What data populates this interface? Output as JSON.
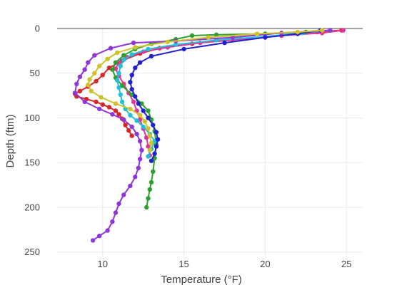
{
  "chart_data": {
    "type": "line",
    "title": "",
    "xlabel": "Temperature (°F)",
    "ylabel": "Depth (ftm)",
    "xlim": [
      7.2,
      26
    ],
    "ylim": [
      0,
      255
    ],
    "y_reversed": true,
    "x_ticks": [
      10,
      15,
      20,
      25
    ],
    "y_ticks": [
      0,
      50,
      100,
      150,
      200,
      250
    ],
    "grid": true,
    "legend": "none",
    "zero_line": true,
    "series": [
      {
        "color": "#d62728",
        "points": [
          [
            24.7,
            2
          ],
          [
            23.2,
            4
          ],
          [
            21.0,
            8
          ],
          [
            18.0,
            12
          ],
          [
            15.5,
            17
          ],
          [
            13.5,
            22
          ],
          [
            12.3,
            28
          ],
          [
            11.2,
            36
          ],
          [
            10.4,
            44
          ],
          [
            10.0,
            52
          ],
          [
            9.6,
            59
          ],
          [
            9.1,
            65
          ],
          [
            8.6,
            70
          ],
          [
            8.3,
            73
          ],
          [
            8.4,
            76
          ],
          [
            9.0,
            79
          ],
          [
            9.6,
            82
          ],
          [
            10.0,
            85
          ],
          [
            10.4,
            88
          ],
          [
            10.8,
            92
          ],
          [
            11.0,
            96
          ],
          [
            11.2,
            101
          ],
          [
            11.4,
            108
          ],
          [
            11.6,
            114
          ],
          [
            11.8,
            120
          ]
        ]
      },
      {
        "color": "#e0359a",
        "points": [
          [
            24.8,
            2
          ],
          [
            23.5,
            5
          ],
          [
            21.0,
            8
          ],
          [
            18.5,
            12
          ],
          [
            16.0,
            16
          ],
          [
            14.0,
            21
          ],
          [
            12.5,
            26
          ],
          [
            11.5,
            32
          ],
          [
            11.0,
            38
          ],
          [
            10.8,
            45
          ],
          [
            11.0,
            53
          ],
          [
            11.3,
            62
          ],
          [
            11.6,
            72
          ],
          [
            11.9,
            82
          ],
          [
            12.1,
            92
          ],
          [
            12.3,
            102
          ],
          [
            12.5,
            112
          ],
          [
            12.7,
            122
          ],
          [
            12.8,
            132
          ],
          [
            12.9,
            142
          ]
        ]
      },
      {
        "color": "#2ca02c",
        "points": [
          [
            24.0,
            2
          ],
          [
            22.5,
            4
          ],
          [
            20.0,
            6
          ],
          [
            17.0,
            7
          ],
          [
            15.5,
            8
          ],
          [
            14.5,
            12
          ],
          [
            13.0,
            17
          ],
          [
            12.0,
            23
          ],
          [
            11.3,
            30
          ],
          [
            10.8,
            38
          ],
          [
            10.6,
            46
          ],
          [
            10.8,
            55
          ],
          [
            11.2,
            64
          ],
          [
            11.8,
            74
          ],
          [
            12.4,
            84
          ],
          [
            12.8,
            92
          ],
          [
            13.0,
            102
          ],
          [
            13.2,
            115
          ],
          [
            13.3,
            130
          ],
          [
            13.2,
            145
          ],
          [
            13.1,
            160
          ],
          [
            13.0,
            172
          ],
          [
            12.9,
            180
          ],
          [
            12.8,
            190
          ],
          [
            12.7,
            200
          ]
        ]
      },
      {
        "color": "#21c0d8",
        "points": [
          [
            24.0,
            2
          ],
          [
            22.3,
            5
          ],
          [
            20.0,
            9
          ],
          [
            17.0,
            13
          ],
          [
            14.5,
            18
          ],
          [
            12.8,
            23
          ],
          [
            11.8,
            29
          ],
          [
            11.3,
            35
          ],
          [
            11.1,
            42
          ],
          [
            11.0,
            50
          ],
          [
            10.9,
            58
          ],
          [
            11.0,
            66
          ],
          [
            11.1,
            74
          ],
          [
            11.2,
            82
          ],
          [
            11.4,
            90
          ],
          [
            11.7,
            97
          ],
          [
            12.1,
            103
          ],
          [
            12.5,
            110
          ],
          [
            12.9,
            118
          ],
          [
            13.2,
            126
          ],
          [
            13.0,
            135
          ],
          [
            12.8,
            143
          ]
        ]
      },
      {
        "color": "#2222cc",
        "points": [
          [
            23.4,
            2
          ],
          [
            22.0,
            6
          ],
          [
            20.0,
            10
          ],
          [
            17.5,
            16
          ],
          [
            15.0,
            23
          ],
          [
            13.0,
            31
          ],
          [
            12.3,
            38
          ],
          [
            12.0,
            44
          ],
          [
            11.8,
            52
          ],
          [
            11.7,
            60
          ],
          [
            11.8,
            68
          ],
          [
            12.0,
            76
          ],
          [
            12.2,
            84
          ],
          [
            12.5,
            92
          ],
          [
            12.8,
            100
          ],
          [
            13.1,
            108
          ],
          [
            13.3,
            116
          ],
          [
            13.4,
            124
          ],
          [
            13.3,
            132
          ],
          [
            13.2,
            140
          ],
          [
            13.0,
            148
          ]
        ]
      },
      {
        "color": "#8e36d8",
        "points": [
          [
            24.0,
            2
          ],
          [
            21.0,
            5
          ],
          [
            18.0,
            10
          ],
          [
            14.5,
            14
          ],
          [
            11.9,
            16
          ],
          [
            10.5,
            22
          ],
          [
            9.5,
            30
          ],
          [
            9.1,
            38
          ],
          [
            8.9,
            46
          ],
          [
            8.6,
            54
          ],
          [
            8.4,
            62
          ],
          [
            8.3,
            72
          ],
          [
            8.9,
            82
          ],
          [
            9.8,
            90
          ],
          [
            10.6,
            96
          ],
          [
            11.3,
            102
          ],
          [
            11.8,
            110
          ],
          [
            12.1,
            118
          ],
          [
            12.3,
            126
          ],
          [
            12.4,
            136
          ],
          [
            12.3,
            146
          ],
          [
            12.2,
            156
          ],
          [
            12.0,
            166
          ],
          [
            11.7,
            176
          ],
          [
            11.3,
            186
          ],
          [
            11.0,
            196
          ],
          [
            10.8,
            206
          ],
          [
            10.6,
            216
          ],
          [
            10.3,
            226
          ],
          [
            9.8,
            232
          ],
          [
            9.4,
            237
          ]
        ]
      },
      {
        "color": "#cdc22a",
        "points": [
          [
            23.5,
            2
          ],
          [
            22.0,
            4
          ],
          [
            19.5,
            6
          ],
          [
            16.5,
            10
          ],
          [
            14.0,
            15
          ],
          [
            12.0,
            21
          ],
          [
            10.9,
            27
          ],
          [
            10.3,
            34
          ],
          [
            9.8,
            42
          ],
          [
            9.5,
            50
          ],
          [
            9.2,
            57
          ],
          [
            9.1,
            63
          ],
          [
            9.3,
            70
          ],
          [
            9.9,
            77
          ],
          [
            10.8,
            84
          ],
          [
            11.7,
            90
          ],
          [
            12.3,
            97
          ],
          [
            12.6,
            104
          ],
          [
            12.8,
            112
          ],
          [
            12.9,
            120
          ],
          [
            13.0,
            128
          ],
          [
            12.9,
            136
          ]
        ]
      }
    ]
  }
}
